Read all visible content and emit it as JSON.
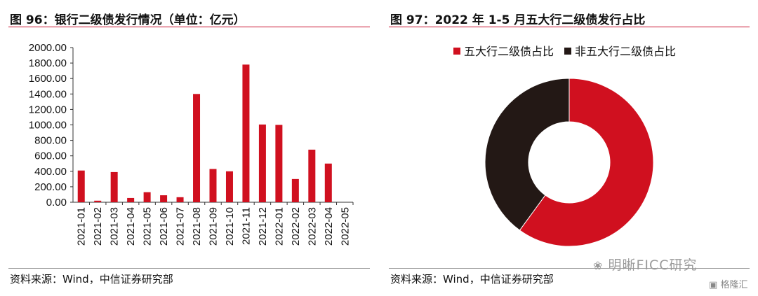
{
  "chart_data": [
    {
      "type": "bar",
      "title": "图 96：银行二级债发行情况（单位：亿元）",
      "source": "资料来源：Wind，中信证券研究部",
      "categories": [
        "2021-01",
        "2021-02",
        "2021-03",
        "2021-04",
        "2021-05",
        "2021-06",
        "2021-07",
        "2021-08",
        "2021-09",
        "2021-10",
        "2021-11",
        "2021-12",
        "2022-01",
        "2022-02",
        "2022-03",
        "2022-04",
        "2022-05"
      ],
      "values": [
        410,
        20,
        390,
        55,
        130,
        90,
        65,
        1400,
        430,
        400,
        1780,
        1005,
        1000,
        300,
        680,
        500,
        0
      ],
      "ytick_labels": [
        "0.00",
        "200.00",
        "400.00",
        "600.00",
        "800.00",
        "1000.00",
        "1200.00",
        "1400.00",
        "1600.00",
        "1800.00",
        "2000.00"
      ],
      "ylim": [
        0,
        2000
      ],
      "bar_color": "#d0101f"
    },
    {
      "type": "pie",
      "title": "图 97：2022 年 1-5 月五大行二级债发行占比",
      "source": "资料来源：Wind，中信证券研究部",
      "labels": [
        "五大行二级债占比",
        "非五大行二级债占比"
      ],
      "values": [
        60,
        40
      ],
      "colors": [
        "#d0101f",
        "#231815"
      ],
      "legend": "top",
      "donut": true
    }
  ],
  "watermark": "明晰FICC研究",
  "logo": "格隆汇"
}
